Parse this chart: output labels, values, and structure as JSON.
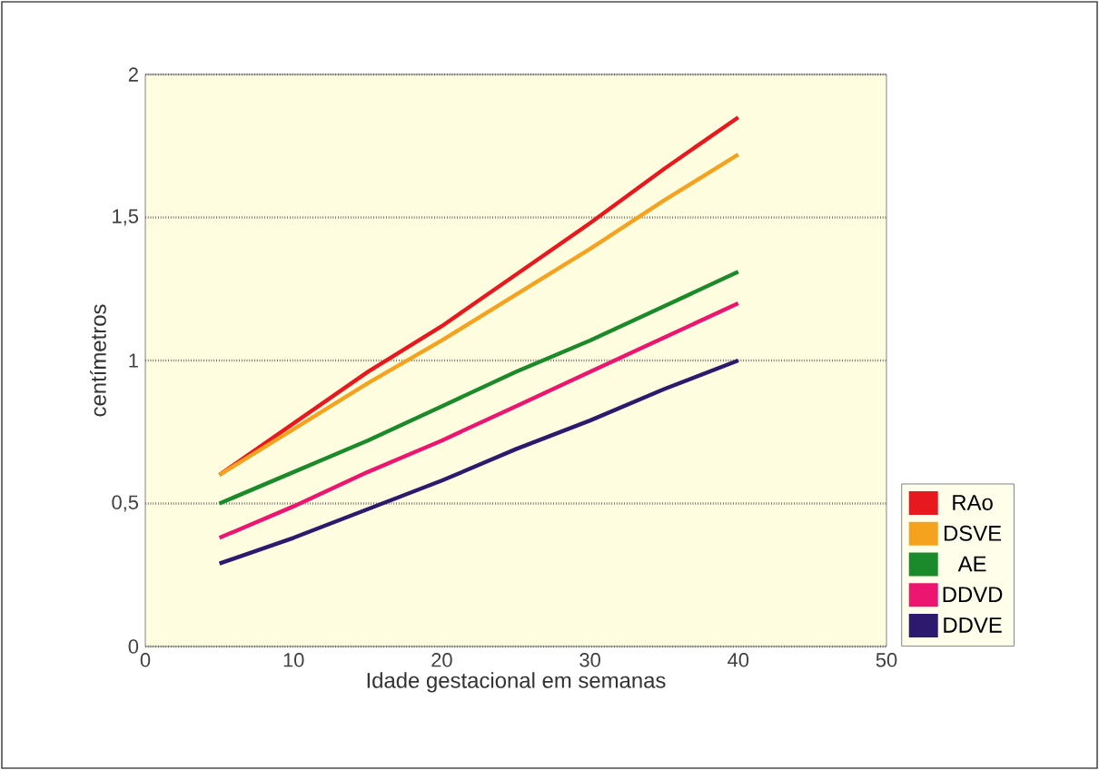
{
  "chart_data": {
    "type": "line",
    "xlabel": "Idade gestacional em semanas",
    "ylabel": "centímetros",
    "x": [
      5,
      10,
      15,
      20,
      25,
      30,
      35,
      40
    ],
    "series": [
      {
        "name": "RAo",
        "color": "#e8191e",
        "values": [
          0.6,
          0.78,
          0.96,
          1.12,
          1.3,
          1.48,
          1.67,
          1.85
        ]
      },
      {
        "name": "DSVE",
        "color": "#f5a21e",
        "values": [
          0.6,
          0.76,
          0.92,
          1.07,
          1.23,
          1.39,
          1.56,
          1.72
        ]
      },
      {
        "name": "AE",
        "color": "#1a8a2a",
        "values": [
          0.5,
          0.61,
          0.72,
          0.84,
          0.96,
          1.07,
          1.19,
          1.31
        ]
      },
      {
        "name": "DDVD",
        "color": "#ec1670",
        "values": [
          0.38,
          0.49,
          0.61,
          0.72,
          0.84,
          0.96,
          1.08,
          1.2
        ]
      },
      {
        "name": "DDVE",
        "color": "#2b1a6e",
        "values": [
          0.29,
          0.38,
          0.48,
          0.58,
          0.69,
          0.79,
          0.9,
          1.0
        ]
      }
    ],
    "xlim": [
      0,
      50
    ],
    "xticks": [
      0,
      10,
      20,
      30,
      40,
      50
    ],
    "ylim": [
      0,
      2
    ],
    "yticks": [
      0,
      {
        "value": 0.5,
        "label": "0,5"
      },
      1,
      {
        "value": 1.5,
        "label": "1,5"
      },
      2
    ],
    "grid": "y",
    "legend": "bottom right",
    "marker": "none",
    "line_style": "solid"
  }
}
